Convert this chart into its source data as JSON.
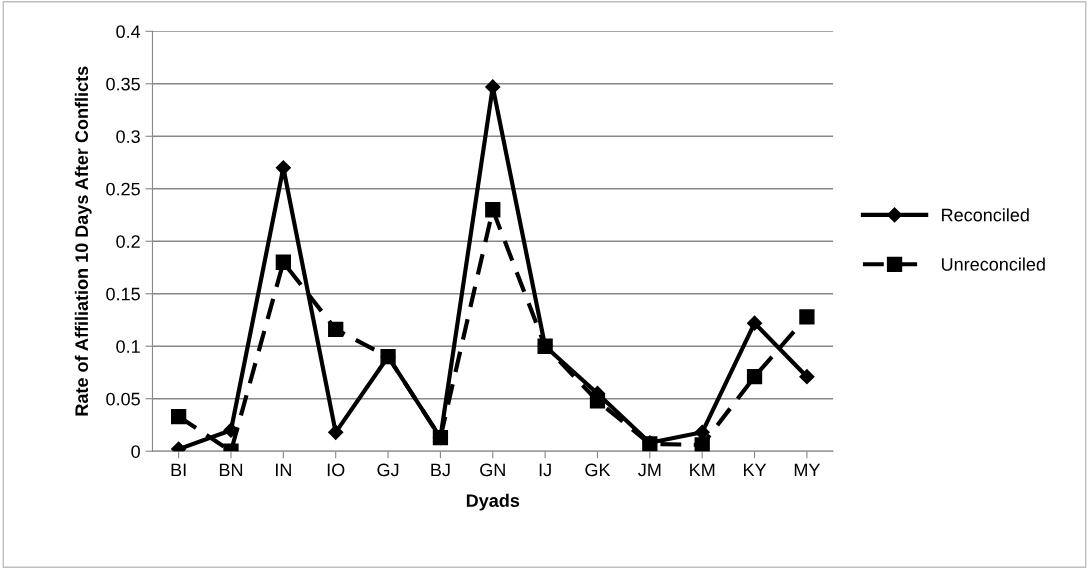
{
  "chart_data": {
    "type": "line",
    "xlabel": "Dyads",
    "ylabel": "Rate of Affiliation 10 Days After Conflicts",
    "categories": [
      "BI",
      "BN",
      "IN",
      "IO",
      "GJ",
      "BJ",
      "GN",
      "IJ",
      "GK",
      "JM",
      "KM",
      "KY",
      "MY"
    ],
    "series": [
      {
        "name": "Reconciled",
        "color": "#000000",
        "marker": "diamond",
        "line_style": "solid",
        "values": [
          0.002,
          0.02,
          0.27,
          0.018,
          0.09,
          0.013,
          0.347,
          0.1,
          0.055,
          0.008,
          0.018,
          0.122,
          0.071
        ]
      },
      {
        "name": "Unreconciled",
        "color": "#000000",
        "marker": "square",
        "line_style": "dashed",
        "values": [
          0.033,
          0.0,
          0.18,
          0.116,
          0.09,
          0.013,
          0.23,
          0.1,
          0.048,
          0.007,
          0.006,
          0.071,
          0.128
        ]
      }
    ],
    "ylim": [
      0,
      0.4
    ],
    "yticks": [
      0,
      0.05,
      0.1,
      0.15,
      0.2,
      0.25,
      0.3,
      0.35,
      0.4
    ],
    "grid": "y",
    "legend": "right"
  }
}
